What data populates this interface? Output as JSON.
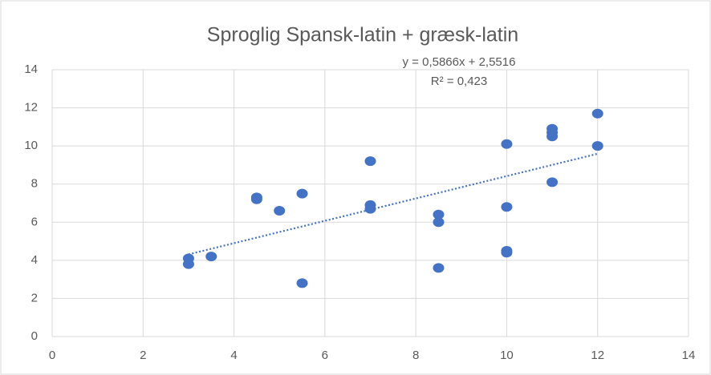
{
  "chart_data": {
    "type": "scatter",
    "title": "Sproglig Spansk-latin + græsk-latin",
    "x": [
      3,
      3,
      3.5,
      4.5,
      4.5,
      5,
      5.5,
      5.5,
      7,
      7,
      7,
      8.5,
      8.5,
      8.5,
      10,
      10,
      10,
      10,
      11,
      11,
      11,
      11,
      12,
      12
    ],
    "values": [
      4.1,
      3.8,
      4.2,
      7.3,
      7.2,
      6.6,
      7.5,
      2.8,
      9.2,
      6.9,
      6.7,
      6.4,
      6.0,
      3.6,
      10.1,
      6.8,
      4.5,
      4.4,
      10.9,
      10.7,
      10.5,
      8.1,
      11.7,
      10.0
    ],
    "color": "#4472c4",
    "xlim": [
      0,
      14
    ],
    "xticks": [
      0,
      2,
      4,
      6,
      8,
      10,
      12,
      14
    ],
    "ylim": [
      0,
      14
    ],
    "yticks": [
      0,
      2,
      4,
      6,
      8,
      10,
      12,
      14
    ],
    "grid": true,
    "trendline": {
      "slope": 0.5866,
      "intercept": 2.5516,
      "equation": "y = 0,5866x + 2,5516",
      "r2": "R² = 0,423"
    }
  }
}
